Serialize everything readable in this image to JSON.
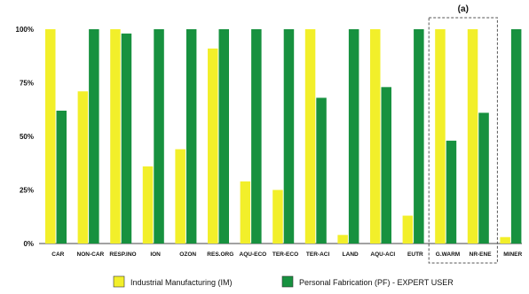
{
  "chart_data": {
    "type": "bar",
    "title": "",
    "xlabel": "",
    "ylabel": "",
    "ylim": [
      0,
      100
    ],
    "y_ticks": [
      "0%",
      "25%",
      "50%",
      "75%",
      "100%"
    ],
    "grid": false,
    "legend_position": "bottom",
    "categories": [
      "CAR",
      "NON-CAR",
      "RESP.INO",
      "ION",
      "OZON",
      "RES.ORG",
      "AQU-ECO",
      "TER-ECO",
      "TER-ACI",
      "LAND",
      "AQU-ACI",
      "EUTR",
      "G.WARM",
      "NR-ENE",
      "MINER"
    ],
    "series": [
      {
        "name": "Industrial Manufacturing (IM)",
        "color": "#f2ef2a",
        "values": [
          100,
          71,
          100,
          36,
          44,
          91,
          29,
          25,
          100,
          4,
          100,
          13,
          100,
          100,
          3
        ]
      },
      {
        "name": "Personal Fabrication (PF) - EXPERT USER",
        "color": "#17913f",
        "values": [
          62,
          100,
          98,
          100,
          100,
          100,
          100,
          100,
          68,
          100,
          73,
          100,
          48,
          61,
          100
        ]
      }
    ],
    "annotations": [
      {
        "text": "(a)",
        "highlight": "dashed box",
        "categories": [
          "G.WARM",
          "NR-ENE"
        ]
      }
    ]
  }
}
